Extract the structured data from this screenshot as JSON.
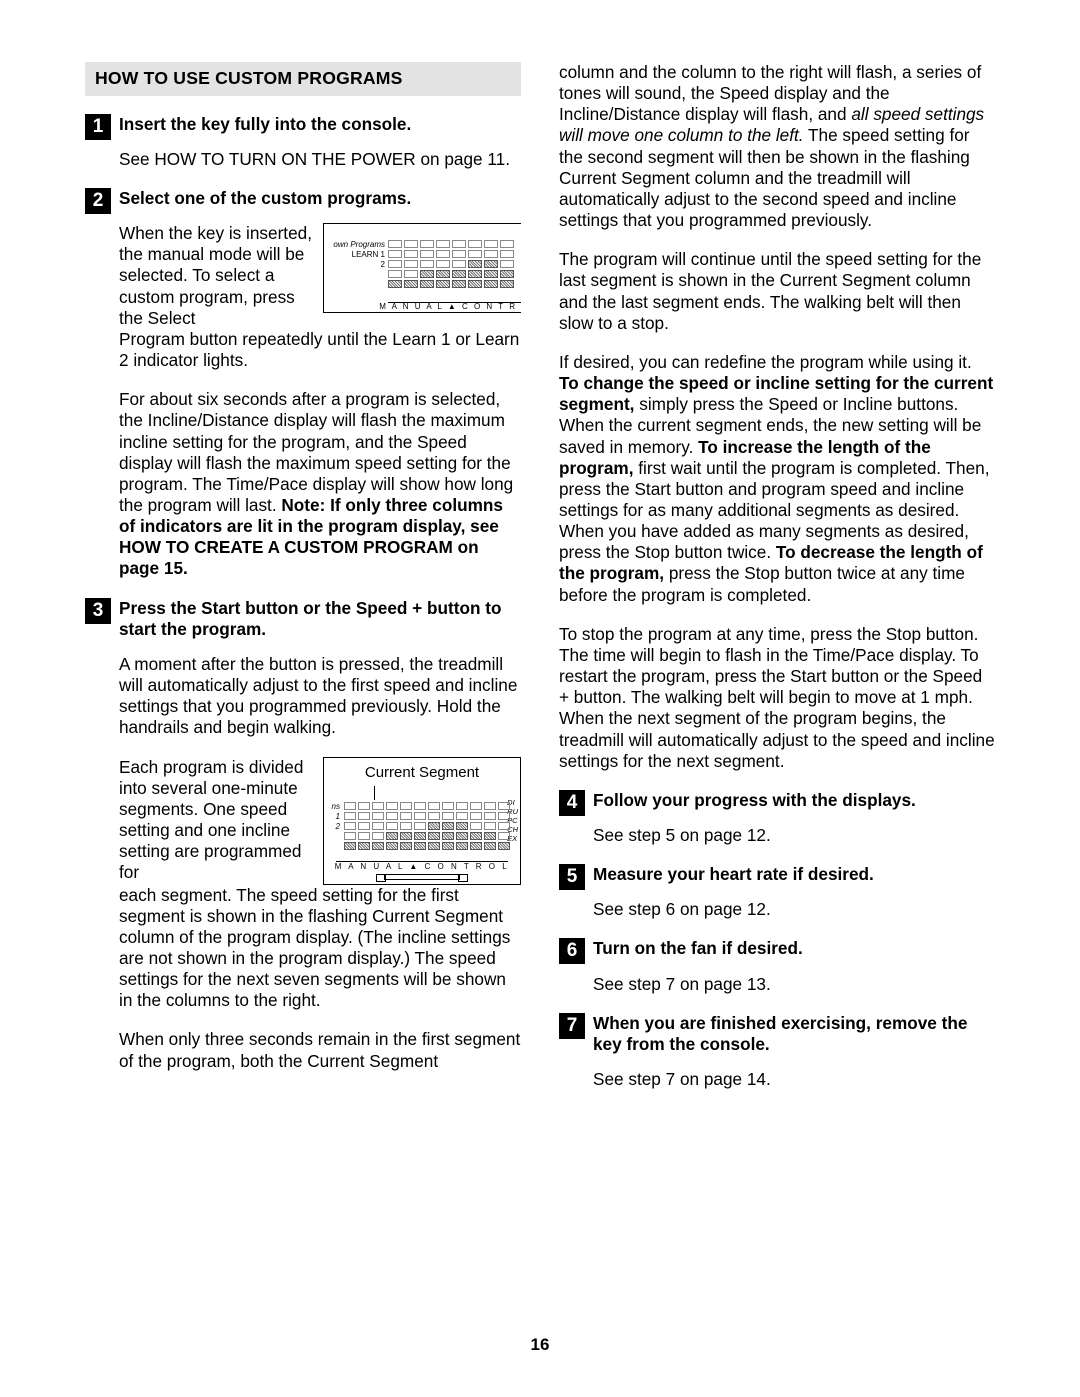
{
  "section_header": "HOW TO USE CUSTOM PROGRAMS",
  "page_number": "16",
  "left": {
    "step1": {
      "num": "1",
      "title": "Insert the key fully into the console.",
      "p1": "See HOW TO TURN ON THE POWER on page 11."
    },
    "step2": {
      "num": "2",
      "title": "Select one of the custom programs.",
      "p1a": "When the key is inserted, the manual mode will be selected. To select a custom program, press the Select",
      "p1b": "Program button repeatedly until the Learn 1 or Learn 2 indicator lights.",
      "p2_pre": "For about six seconds after a program is selected, the Incline/Distance display will flash the maximum incline setting for the program, and the Speed display will flash the maximum speed setting for the program. The Time/Pace display will show how long the program will last. ",
      "p2_bold": "Note: If only three columns of indicators are lit in the program display, see HOW TO CREATE A CUSTOM PROGRAM on page 15."
    },
    "step3": {
      "num": "3",
      "title": "Press the Start button or the Speed + button to start the program.",
      "p1": "A moment after the button is pressed, the treadmill will automatically adjust to the first speed and incline settings that you programmed previously. Hold the handrails and begin walking.",
      "p2a": "Each program is divided into several one-minute segments. One speed setting and one incline setting are programmed for",
      "p2b": "each segment. The speed setting for the first segment is shown in the flashing Current Segment column of the program display. (The incline settings are not shown in the program display.) The speed settings for the next seven segments will be shown in the columns to the right.",
      "p3": "When only three seconds remain in the first segment of the program, both the Current Segment"
    },
    "diag1": {
      "label_top": "own Programs",
      "label_l1": "LEARN 1",
      "label_l2": "2",
      "footer": "M A N U A L ▲ C O N T R",
      "hatch_map": [
        [
          0,
          0,
          0,
          0,
          0,
          0,
          0,
          0
        ],
        [
          0,
          0,
          0,
          0,
          0,
          0,
          0,
          0
        ],
        [
          0,
          0,
          0,
          0,
          0,
          1,
          1,
          0
        ],
        [
          0,
          0,
          1,
          1,
          1,
          1,
          1,
          1
        ],
        [
          1,
          1,
          1,
          1,
          1,
          1,
          1,
          1
        ]
      ]
    },
    "diag2": {
      "title": "Current Segment",
      "left_ns": "ns",
      "left_1": "1",
      "left_2": "2",
      "right_di": "DI",
      "right_ru": "RU",
      "right_pc": "PC",
      "right_ch": "CH",
      "right_ex": "EX",
      "footer": "M A N U A L ▲ C O N T R O L",
      "hatch_map": [
        [
          0,
          0,
          0,
          0,
          0,
          0,
          0,
          0,
          0,
          0,
          0,
          0
        ],
        [
          0,
          0,
          0,
          0,
          0,
          0,
          0,
          0,
          0,
          0,
          0,
          0
        ],
        [
          0,
          0,
          0,
          0,
          0,
          0,
          1,
          1,
          1,
          0,
          0,
          0
        ],
        [
          0,
          0,
          0,
          1,
          1,
          1,
          1,
          1,
          1,
          1,
          1,
          0
        ],
        [
          1,
          1,
          1,
          1,
          1,
          1,
          1,
          1,
          1,
          1,
          1,
          1
        ]
      ]
    }
  },
  "right": {
    "cont1_a": "column and the column to the right will flash, a series of tones will sound, the Speed display and the Incline/Distance display will flash, and ",
    "cont1_it": "all speed settings will move one column to the left.",
    "cont1_b": " The speed setting for the second segment will then be shown in the flashing Current Segment column and the treadmill will automatically adjust to the second speed and incline settings that you programmed previously.",
    "cont2": "The program will continue until the speed setting for the last segment is shown in the Current Segment column and the last segment ends. The walking belt will then slow to a stop.",
    "cont3_a": "If desired, you can redefine the program while using it. ",
    "cont3_b1": "To change the speed or incline setting for the current segment,",
    "cont3_c": " simply press the Speed or Incline buttons. When the current segment ends, the new setting will be saved in memory. ",
    "cont3_b2": "To increase the length of the program,",
    "cont3_d": " first wait until the program is completed. Then, press the Start button and program speed and incline settings for as many additional segments as desired. When you have added as many segments as desired, press the Stop button twice. ",
    "cont3_b3": "To decrease the length of the program,",
    "cont3_e": " press the Stop button twice at any time before the program is completed.",
    "cont4": "To stop the program at any time, press the Stop button. The time will begin to flash in the Time/Pace display. To restart the program, press the Start button or the Speed + button. The walking belt will begin to move at 1 mph. When the next segment of the program begins, the treadmill will automatically adjust to the speed and incline settings for the next segment.",
    "step4": {
      "num": "4",
      "title": "Follow your progress with the displays.",
      "p1": "See step 5 on page 12."
    },
    "step5": {
      "num": "5",
      "title": "Measure your heart rate if desired.",
      "p1": "See step 6 on page 12."
    },
    "step6": {
      "num": "6",
      "title": "Turn on the fan if desired.",
      "p1": "See step 7 on page 13."
    },
    "step7": {
      "num": "7",
      "title": "When you are finished exercising, remove the key from the console.",
      "p1": "See step 7 on page 14."
    }
  }
}
